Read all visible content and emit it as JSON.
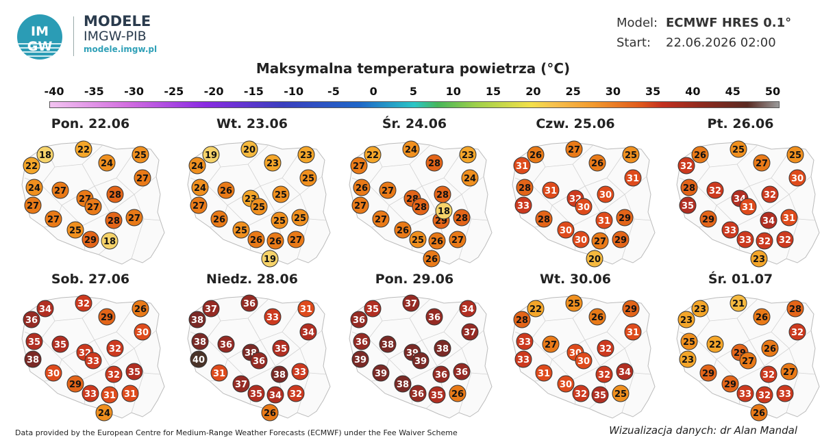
{
  "header": {
    "logo_letters": "IMGW",
    "brand_title": "MODELE",
    "brand_sub": "IMGW-PIB",
    "brand_url": "modele.imgw.pl",
    "model_key": "Model:",
    "model_val": "ECMWF HRES 0.1°",
    "start_key": "Start:",
    "start_val": "22.06.2026 02:00"
  },
  "title": "Maksymalna temperatura powietrza (°C)",
  "scale": {
    "ticks": [
      "-40",
      "-35",
      "-30",
      "-25",
      "-20",
      "-15",
      "-10",
      "-5",
      "0",
      "5",
      "10",
      "15",
      "20",
      "25",
      "30",
      "35",
      "40",
      "45",
      "50"
    ]
  },
  "days": [
    {
      "label": "Pon. 22.06",
      "values": [
        18,
        22,
        25,
        22,
        24,
        27,
        24,
        27,
        27,
        28,
        27,
        27,
        28,
        27,
        27,
        25,
        29,
        18
      ]
    },
    {
      "label": "Wt. 23.06",
      "values": [
        19,
        20,
        23,
        24,
        23,
        25,
        24,
        26,
        23,
        25,
        27,
        25,
        25,
        25,
        26,
        25,
        26,
        26,
        27,
        19
      ]
    },
    {
      "label": "Śr. 24.06",
      "values": [
        22,
        24,
        23,
        27,
        28,
        24,
        26,
        27,
        28,
        28,
        27,
        28,
        29,
        28,
        27,
        26,
        25,
        26,
        27,
        26,
        18
      ]
    },
    {
      "label": "Czw. 25.06",
      "values": [
        26,
        27,
        25,
        31,
        26,
        31,
        28,
        31,
        32,
        30,
        33,
        30,
        31,
        29,
        28,
        30,
        30,
        27,
        29,
        20
      ]
    },
    {
      "label": "Pt. 26.06",
      "values": [
        26,
        25,
        25,
        32,
        27,
        30,
        28,
        32,
        34,
        32,
        35,
        31,
        34,
        31,
        29,
        33,
        33,
        32,
        32,
        23
      ]
    },
    {
      "label": "Sob. 27.06",
      "values": [
        34,
        32,
        26,
        36,
        29,
        30,
        35,
        35,
        32,
        32,
        38,
        33,
        32,
        35,
        30,
        29,
        33,
        31,
        31,
        24
      ]
    },
    {
      "label": "Niedz. 28.06",
      "values": [
        37,
        36,
        31,
        38,
        33,
        34,
        38,
        36,
        38,
        35,
        40,
        36,
        38,
        33,
        31,
        37,
        35,
        34,
        32,
        26
      ]
    },
    {
      "label": "Pon. 29.06",
      "values": [
        35,
        37,
        34,
        36,
        36,
        37,
        36,
        38,
        39,
        38,
        39,
        39,
        36,
        36,
        39,
        38,
        36,
        35,
        26
      ]
    },
    {
      "label": "Wt. 30.06",
      "values": [
        22,
        25,
        29,
        28,
        26,
        31,
        33,
        27,
        30,
        32,
        33,
        30,
        32,
        34,
        31,
        30,
        32,
        35,
        25
      ]
    },
    {
      "label": "Śr. 01.07",
      "values": [
        23,
        21,
        28,
        23,
        26,
        32,
        25,
        22,
        29,
        26,
        23,
        27,
        32,
        27,
        29,
        29,
        33,
        32,
        33,
        26
      ]
    }
  ],
  "footer": {
    "left": "Data provided by the European Centre for Medium-Range Weather Forecasts (ECMWF) under the Fee Waiver Scheme",
    "right": "Wizualizacja danych: dr Alan Mandal"
  }
}
